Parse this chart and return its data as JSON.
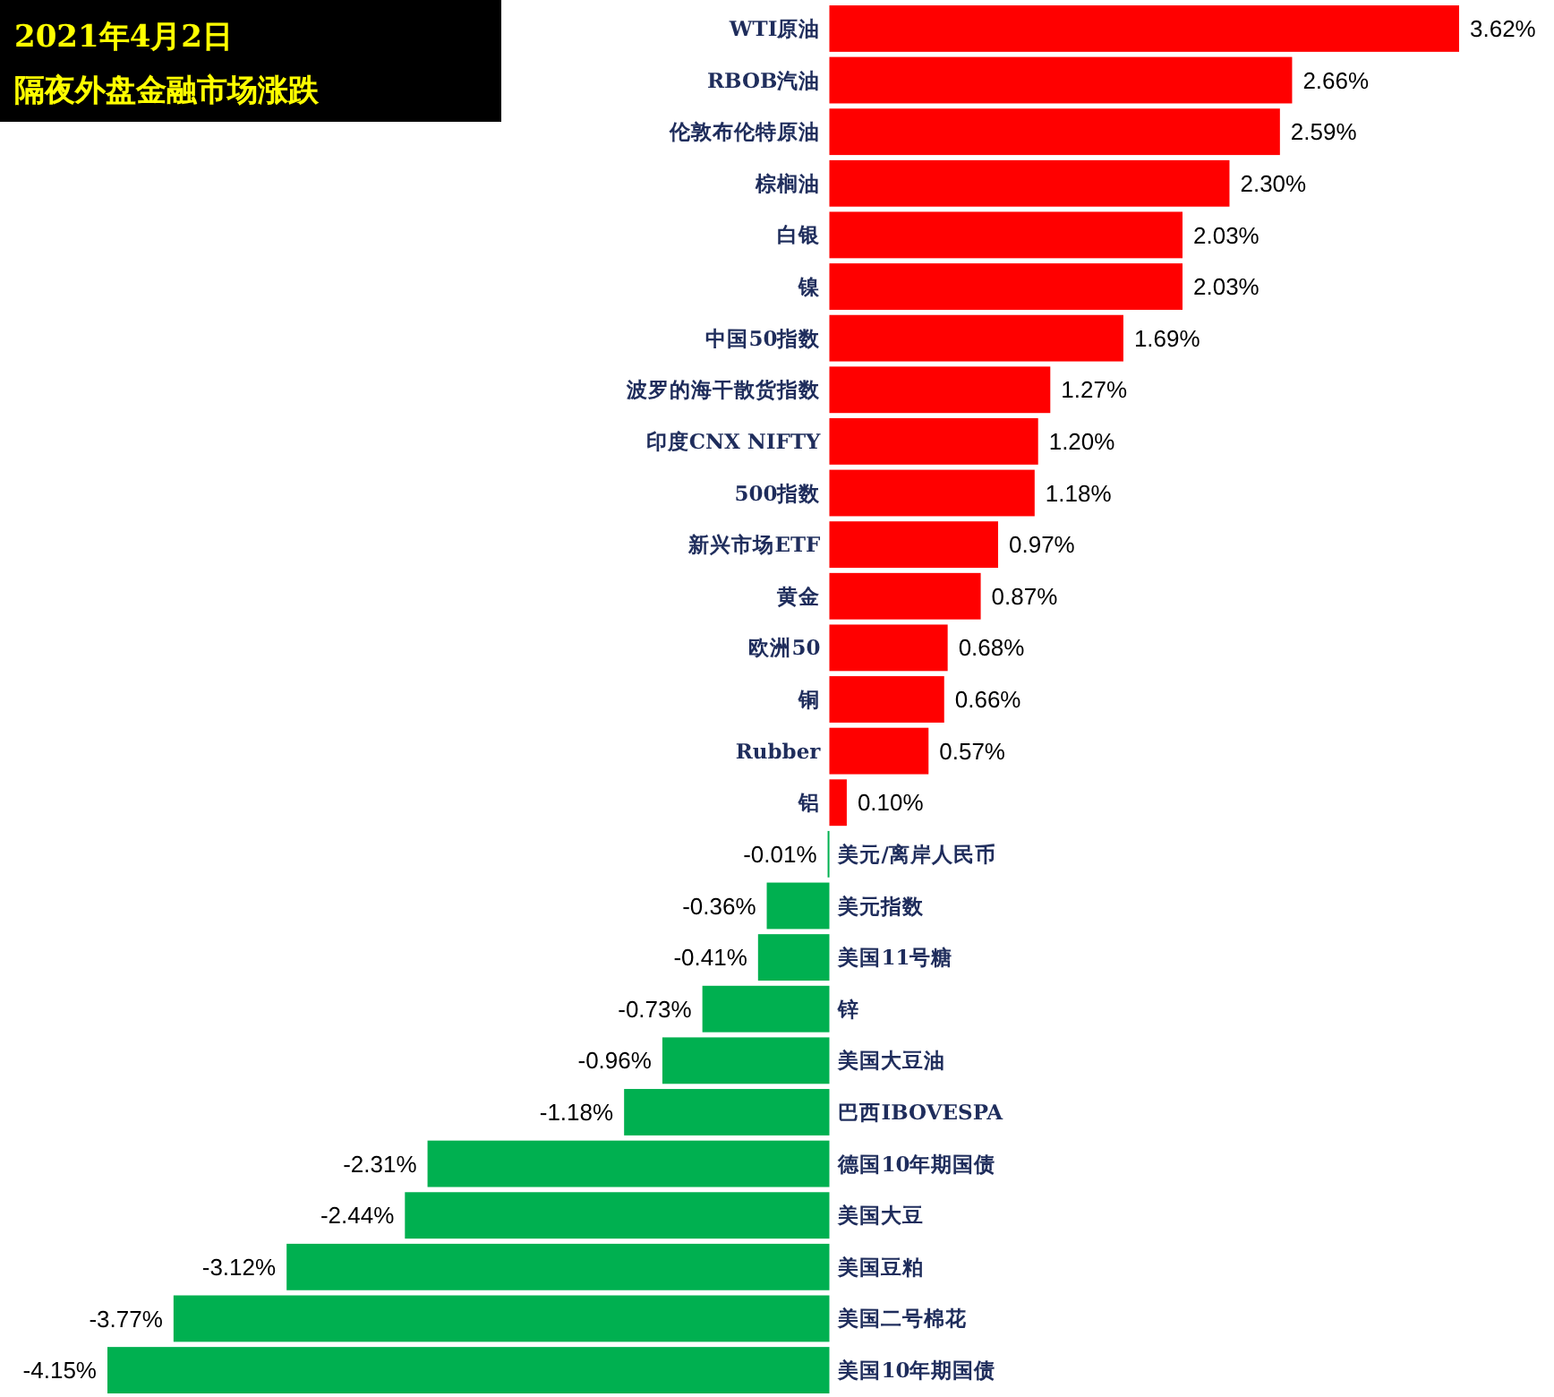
{
  "chart_data": {
    "type": "bar",
    "orientation": "horizontal",
    "title": "2021年4月2日",
    "subtitle": "隔夜外盘金融市场涨跌",
    "categories": [
      "WTI原油",
      "RBOB汽油",
      "伦敦布伦特原油",
      "棕榈油",
      "白银",
      "镍",
      "中国50指数",
      "波罗的海干散货指数",
      "印度CNX NIFTY",
      "500指数",
      "新兴市场ETF",
      "黄金",
      "欧洲50",
      "铜",
      "Rubber",
      "铝",
      "美元/离岸人民币",
      "美元指数",
      "美国11号糖",
      "锌",
      "美国大豆油",
      "巴西IBOVESPA",
      "德国10年期国债",
      "美国大豆",
      "美国豆粕",
      "美国二号棉花",
      "美国10年期国债"
    ],
    "values": [
      3.62,
      2.66,
      2.59,
      2.3,
      2.03,
      2.03,
      1.69,
      1.27,
      1.2,
      1.18,
      0.97,
      0.87,
      0.68,
      0.66,
      0.57,
      0.1,
      -0.01,
      -0.36,
      -0.41,
      -0.73,
      -0.96,
      -1.18,
      -2.31,
      -2.44,
      -3.12,
      -3.77,
      -4.15
    ],
    "value_labels": [
      "3.62%",
      "2.66%",
      "2.59%",
      "2.30%",
      "2.03%",
      "2.03%",
      "1.69%",
      "1.27%",
      "1.20%",
      "1.18%",
      "0.97%",
      "0.87%",
      "0.68%",
      "0.66%",
      "0.57%",
      "0.10%",
      "-0.01%",
      "-0.36%",
      "-0.41%",
      "-0.73%",
      "-0.96%",
      "-1.18%",
      "-2.31%",
      "-2.44%",
      "-3.12%",
      "-3.77%",
      "-4.15%"
    ],
    "colors": [
      "#ff0000",
      "#ff0000",
      "#ff0000",
      "#ff0000",
      "#ff0000",
      "#ff0000",
      "#ff0000",
      "#ff0000",
      "#ff0000",
      "#ff0000",
      "#ff0000",
      "#ff0000",
      "#ff0000",
      "#ff0000",
      "#ff0000",
      "#ff0000",
      "#00b050",
      "#00b050",
      "#00b050",
      "#00b050",
      "#00b050",
      "#00b050",
      "#00b050",
      "#00b050",
      "#00b050",
      "#00b050",
      "#00b050"
    ]
  }
}
